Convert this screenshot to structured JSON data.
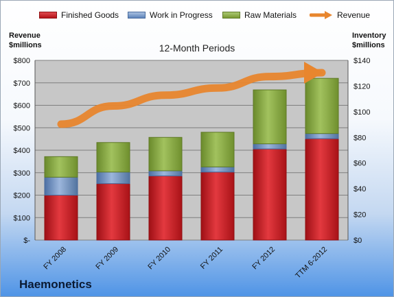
{
  "legend": {
    "finished": "Finished Goods",
    "wip": "Work in Progress",
    "raw": "Raw Materials",
    "revenue": "Revenue"
  },
  "axis_titles": {
    "left_line1": "Revenue",
    "left_line2": "$millions",
    "right_line1": "Inventory",
    "right_line2": "$millions"
  },
  "period_label": "12-Month Periods",
  "company": "Haemonetics",
  "colors": {
    "finished": "#c8171d",
    "wip": "#6f92c4",
    "raw": "#8cab42",
    "revenue": "#e8862e",
    "plot_bg": "#c7c7c7",
    "grid": "#7f7f7f"
  },
  "chart_data": {
    "type": "bar",
    "stacked": true,
    "categories": [
      "FY 2008",
      "FY 2009",
      "FY 2010",
      "FY 2011",
      "FY 2012",
      "TTM 6-2012"
    ],
    "series": [
      {
        "name": "Finished Goods",
        "axis": "right",
        "values": [
          35,
          44,
          50,
          53,
          71,
          79
        ]
      },
      {
        "name": "Work in Progress",
        "axis": "right",
        "values": [
          14,
          9,
          4,
          4,
          4,
          4
        ]
      },
      {
        "name": "Raw Materials",
        "axis": "right",
        "values": [
          16,
          23,
          26,
          27,
          42,
          43
        ]
      },
      {
        "name": "Revenue",
        "axis": "left",
        "type": "line",
        "values": [
          516,
          597,
          645,
          677,
          728,
          745
        ]
      }
    ],
    "left_axis": {
      "title": "Revenue $millions",
      "ylim": [
        0,
        800
      ],
      "ticks": [
        0,
        100,
        200,
        300,
        400,
        500,
        600,
        700,
        800
      ],
      "tick_labels": [
        "$-",
        "$100",
        "$200",
        "$300",
        "$400",
        "$500",
        "$600",
        "$700",
        "$800"
      ]
    },
    "right_axis": {
      "title": "Inventory $millions",
      "ylim": [
        0,
        140
      ],
      "ticks": [
        0,
        20,
        40,
        60,
        80,
        100,
        120,
        140
      ],
      "tick_labels": [
        "$0",
        "$20",
        "$40",
        "$60",
        "$80",
        "$100",
        "$120",
        "$140"
      ]
    },
    "title": "12-Month Periods",
    "grid": true,
    "legend_position": "top"
  }
}
